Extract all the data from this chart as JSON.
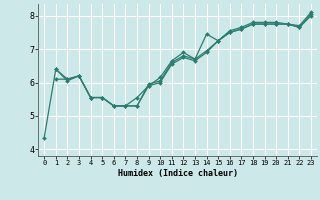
{
  "xlabel": "Humidex (Indice chaleur)",
  "background_color": "#cce8e8",
  "grid_color": "#ffffff",
  "line_color": "#2d7d6e",
  "xlim": [
    -0.5,
    23.5
  ],
  "ylim": [
    3.8,
    8.35
  ],
  "yticks": [
    4,
    5,
    6,
    7,
    8
  ],
  "xticks": [
    0,
    1,
    2,
    3,
    4,
    5,
    6,
    7,
    8,
    9,
    10,
    11,
    12,
    13,
    14,
    15,
    16,
    17,
    18,
    19,
    20,
    21,
    22,
    23
  ],
  "series1_x": [
    0,
    1,
    2,
    3,
    4,
    5,
    6,
    7,
    8,
    9,
    10,
    11,
    12,
    13,
    14,
    15,
    16,
    17,
    18,
    19,
    20,
    21,
    22,
    23
  ],
  "series1_y": [
    4.35,
    6.4,
    6.05,
    6.2,
    5.55,
    5.55,
    5.3,
    5.3,
    5.3,
    5.95,
    6.05,
    6.6,
    6.8,
    6.7,
    6.95,
    7.25,
    7.5,
    7.6,
    7.75,
    7.75,
    7.75,
    7.75,
    7.65,
    8.05
  ],
  "series2_x": [
    1,
    2,
    3,
    4,
    5,
    6,
    7,
    8,
    9,
    10,
    11,
    12,
    13,
    14,
    15,
    16,
    17,
    18,
    19,
    20,
    21,
    22,
    23
  ],
  "series2_y": [
    6.4,
    6.1,
    6.2,
    5.55,
    5.55,
    5.3,
    5.3,
    5.55,
    5.9,
    6.15,
    6.65,
    6.9,
    6.7,
    7.45,
    7.25,
    7.55,
    7.65,
    7.8,
    7.8,
    7.8,
    7.75,
    7.7,
    8.1
  ],
  "series3_x": [
    1,
    2,
    3,
    4,
    5,
    6,
    7,
    8,
    9,
    10,
    11,
    12,
    13,
    14,
    15,
    16,
    17,
    18,
    19,
    20,
    21,
    22,
    23
  ],
  "series3_y": [
    6.1,
    6.1,
    6.2,
    5.55,
    5.55,
    5.3,
    5.3,
    5.3,
    5.9,
    6.0,
    6.55,
    6.75,
    6.65,
    6.9,
    7.25,
    7.5,
    7.6,
    7.75,
    7.75,
    7.75,
    7.75,
    7.65,
    8.0
  ]
}
